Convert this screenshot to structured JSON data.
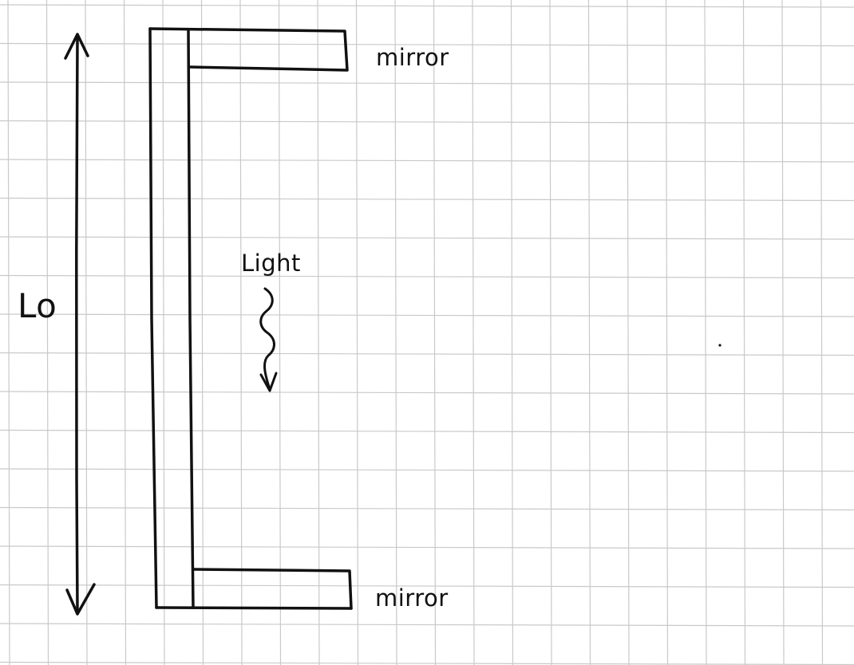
{
  "labels": {
    "length": "Lo",
    "light": "Light",
    "mirror_top": "mirror",
    "mirror_bottom": "mirror"
  },
  "colors": {
    "paper": "#ffffff",
    "grid": "#c9c9c9",
    "ink": "#111111"
  }
}
